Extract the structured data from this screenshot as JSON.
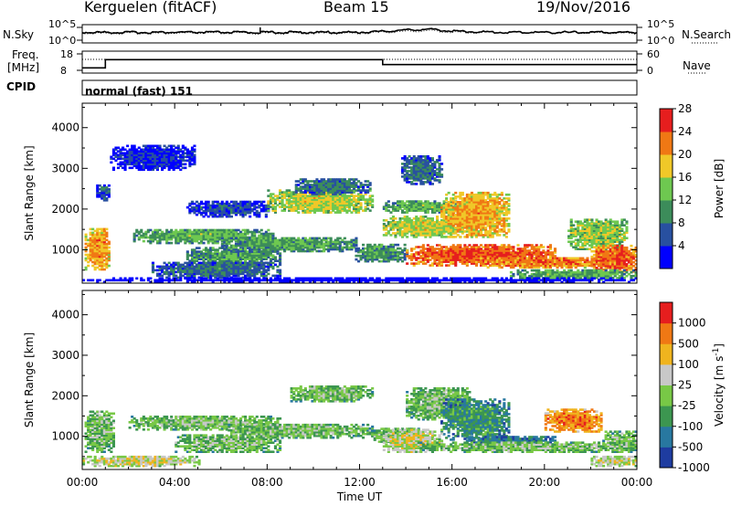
{
  "header": {
    "station": "Kerguelen (fitACF)",
    "beam": "Beam 15",
    "date": "19/Nov/2016"
  },
  "top_panel_labels": {
    "nsky": "N.Sky",
    "nsky_tick_hi": "10^5",
    "nsky_tick_lo": "10^0",
    "nsearch": "N.Search",
    "nsearch_tick_hi": "10^5",
    "nsearch_tick_lo": "10^0",
    "freq_line1": "Freq.",
    "freq_line2": "[MHz]",
    "freq_tick_hi": "18",
    "freq_tick_lo": "8",
    "nave": "Nave",
    "nave_tick_hi": "60",
    "nave_tick_lo": "0",
    "cpid": "CPID",
    "cpid_value": "normal (fast) 151"
  },
  "chart_data": [
    {
      "type": "line",
      "panel": "noise",
      "x_hours": [
        0,
        24
      ],
      "series": [
        {
          "name": "N.Sky",
          "style": "solid",
          "x_hours": [
            0,
            6,
            12,
            13,
            14,
            15,
            16,
            18,
            24
          ],
          "level": [
            0.55,
            0.55,
            0.55,
            0.6,
            0.68,
            0.72,
            0.62,
            0.55,
            0.55
          ]
        },
        {
          "name": "N.Search",
          "style": "dotted",
          "x_hours": [
            0,
            12,
            14,
            15,
            16,
            24
          ],
          "level": [
            0.5,
            0.5,
            0.6,
            0.64,
            0.55,
            0.5
          ]
        }
      ]
    },
    {
      "type": "line",
      "panel": "frequency",
      "ylim_freq": [
        8,
        18
      ],
      "ylim_nave": [
        0,
        60
      ],
      "series": [
        {
          "name": "Freq.",
          "style": "solid",
          "x_hours": [
            0,
            1,
            1,
            13,
            13,
            24
          ],
          "values": [
            9.5,
            9.5,
            14.5,
            14.5,
            11.5,
            11.5
          ]
        },
        {
          "name": "Nave",
          "style": "dotted",
          "x_hours": [
            0,
            24
          ],
          "values": [
            40,
            40
          ]
        }
      ]
    },
    {
      "type": "heatmap",
      "panel": "power",
      "ylabel": "Slant Range [km]",
      "ylim": [
        180,
        4600
      ],
      "yticks": [
        1000,
        2000,
        3000,
        4000
      ],
      "xlim_hours": [
        0,
        24
      ],
      "colorbar": {
        "label": "Power [dB]",
        "ticks": [
          "4",
          "8",
          "12",
          "16",
          "20",
          "24",
          "28"
        ],
        "colors": [
          "#0000ff",
          "#2850a0",
          "#3c8c5a",
          "#6ec850",
          "#f0c828",
          "#f07814",
          "#e61e1e"
        ]
      },
      "regions": [
        {
          "t": [
            0.1,
            1.2
          ],
          "r": [
            500,
            1500
          ],
          "level": 0.75
        },
        {
          "t": [
            0.6,
            1.2
          ],
          "r": [
            2200,
            2600
          ],
          "level": 0.25
        },
        {
          "t": [
            1.2,
            4.8
          ],
          "r": [
            2950,
            3550
          ],
          "level": 0.15
        },
        {
          "t": [
            2.2,
            8.2
          ],
          "r": [
            1150,
            1500
          ],
          "level": 0.45
        },
        {
          "t": [
            4.5,
            8.5
          ],
          "r": [
            620,
            1050
          ],
          "level": 0.4
        },
        {
          "t": [
            3.0,
            8.5
          ],
          "r": [
            300,
            700
          ],
          "level": 0.3
        },
        {
          "t": [
            6.0,
            11.8
          ],
          "r": [
            950,
            1300
          ],
          "level": 0.42
        },
        {
          "t": [
            4.5,
            8.0
          ],
          "r": [
            1800,
            2200
          ],
          "level": 0.2
        },
        {
          "t": [
            8.0,
            12.5
          ],
          "r": [
            1900,
            2450
          ],
          "level": 0.6
        },
        {
          "t": [
            9.2,
            12.4
          ],
          "r": [
            2350,
            2750
          ],
          "level": 0.3
        },
        {
          "t": [
            11.8,
            14.0
          ],
          "r": [
            700,
            1150
          ],
          "level": 0.4
        },
        {
          "t": [
            13.8,
            15.5
          ],
          "r": [
            2600,
            3300
          ],
          "level": 0.3
        },
        {
          "t": [
            13.0,
            16.5
          ],
          "r": [
            1300,
            1800
          ],
          "level": 0.6
        },
        {
          "t": [
            13.0,
            16.5
          ],
          "r": [
            1900,
            2200
          ],
          "level": 0.45
        },
        {
          "t": [
            15.5,
            18.5
          ],
          "r": [
            1300,
            2400
          ],
          "level": 0.72
        },
        {
          "t": [
            14.0,
            20.5
          ],
          "r": [
            600,
            1100
          ],
          "level": 0.88
        },
        {
          "t": [
            17.0,
            22.5
          ],
          "r": [
            550,
            800
          ],
          "level": 0.8
        },
        {
          "t": [
            21.0,
            23.6
          ],
          "r": [
            1000,
            1750
          ],
          "level": 0.55
        },
        {
          "t": [
            22.0,
            24.0
          ],
          "r": [
            450,
            1100
          ],
          "level": 0.85
        },
        {
          "t": [
            18.5,
            24.0
          ],
          "r": [
            250,
            500
          ],
          "level": 0.45
        },
        {
          "t": [
            0.0,
            24.0
          ],
          "r": [
            190,
            290
          ],
          "level": 0.0
        }
      ]
    },
    {
      "type": "heatmap",
      "panel": "velocity",
      "ylabel": "Slant Range [km]",
      "xlabel": "Time UT",
      "ylim": [
        180,
        4600
      ],
      "yticks": [
        1000,
        2000,
        3000,
        4000
      ],
      "xlim_hours": [
        0,
        24
      ],
      "xticks": [
        "00:00",
        "04:00",
        "08:00",
        "12:00",
        "16:00",
        "20:00",
        "00:00"
      ],
      "colorbar": {
        "label": "Velocity [m s^-1]",
        "ticks": [
          "1000",
          "500",
          "100",
          "25",
          "-25",
          "-100",
          "-500",
          "-1000"
        ],
        "colors": [
          "#1e3ca0",
          "#2878a0",
          "#3c9650",
          "#78c846",
          "#c8c8c8",
          "#f0b41e",
          "#f07814",
          "#e61e1e"
        ]
      },
      "regions": [
        {
          "t": [
            0.1,
            1.4
          ],
          "r": [
            600,
            1600
          ],
          "level": 0.45
        },
        {
          "t": [
            2.0,
            8.5
          ],
          "r": [
            1150,
            1500
          ],
          "level": 0.45
        },
        {
          "t": [
            4.0,
            8.5
          ],
          "r": [
            600,
            1050
          ],
          "level": 0.45
        },
        {
          "t": [
            6.0,
            12.5
          ],
          "r": [
            950,
            1300
          ],
          "level": 0.45
        },
        {
          "t": [
            9.0,
            12.5
          ],
          "r": [
            1850,
            2250
          ],
          "level": 0.45
        },
        {
          "t": [
            12.5,
            14.5
          ],
          "r": [
            850,
            1200
          ],
          "level": 0.45
        },
        {
          "t": [
            14.0,
            16.8
          ],
          "r": [
            1400,
            2200
          ],
          "level": 0.45
        },
        {
          "t": [
            15.5,
            18.5
          ],
          "r": [
            900,
            1900
          ],
          "level": 0.3
        },
        {
          "t": [
            16.5,
            20.5
          ],
          "r": [
            650,
            1000
          ],
          "level": 0.25
        },
        {
          "t": [
            13.0,
            15.5
          ],
          "r": [
            600,
            1150
          ],
          "level": 0.58
        },
        {
          "t": [
            14.5,
            24.0
          ],
          "r": [
            600,
            850
          ],
          "level": 0.45
        },
        {
          "t": [
            20.0,
            22.5
          ],
          "r": [
            1100,
            1650
          ],
          "level": 0.82
        },
        {
          "t": [
            22.5,
            24.0
          ],
          "r": [
            600,
            1100
          ],
          "level": 0.45
        },
        {
          "t": [
            22.0,
            24.0
          ],
          "r": [
            250,
            500
          ],
          "level": 0.6
        },
        {
          "t": [
            0.0,
            5.0
          ],
          "r": [
            250,
            500
          ],
          "level": 0.6
        }
      ]
    }
  ]
}
